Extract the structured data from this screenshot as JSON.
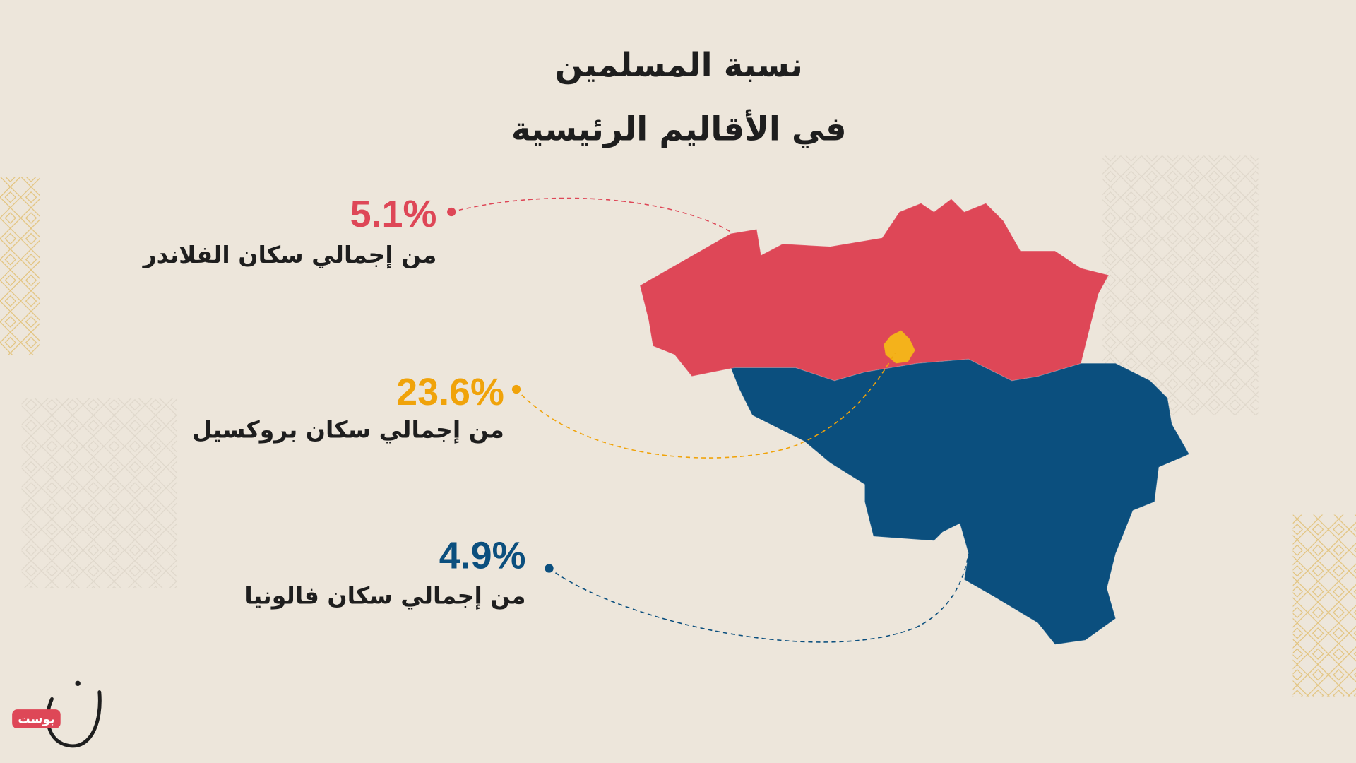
{
  "title": [
    "نسبة المسلمين",
    "في الأقاليم الرئيسية"
  ],
  "regions": [
    {
      "value": "5.1%",
      "caption": "من إجمالي سكان الفلاندر"
    },
    {
      "value": "23.6%",
      "caption": "من إجمالي سكان بروكسيل"
    },
    {
      "value": "4.9%",
      "caption": "من إجمالي سكان فالونيا"
    }
  ],
  "logo": "بوست"
}
